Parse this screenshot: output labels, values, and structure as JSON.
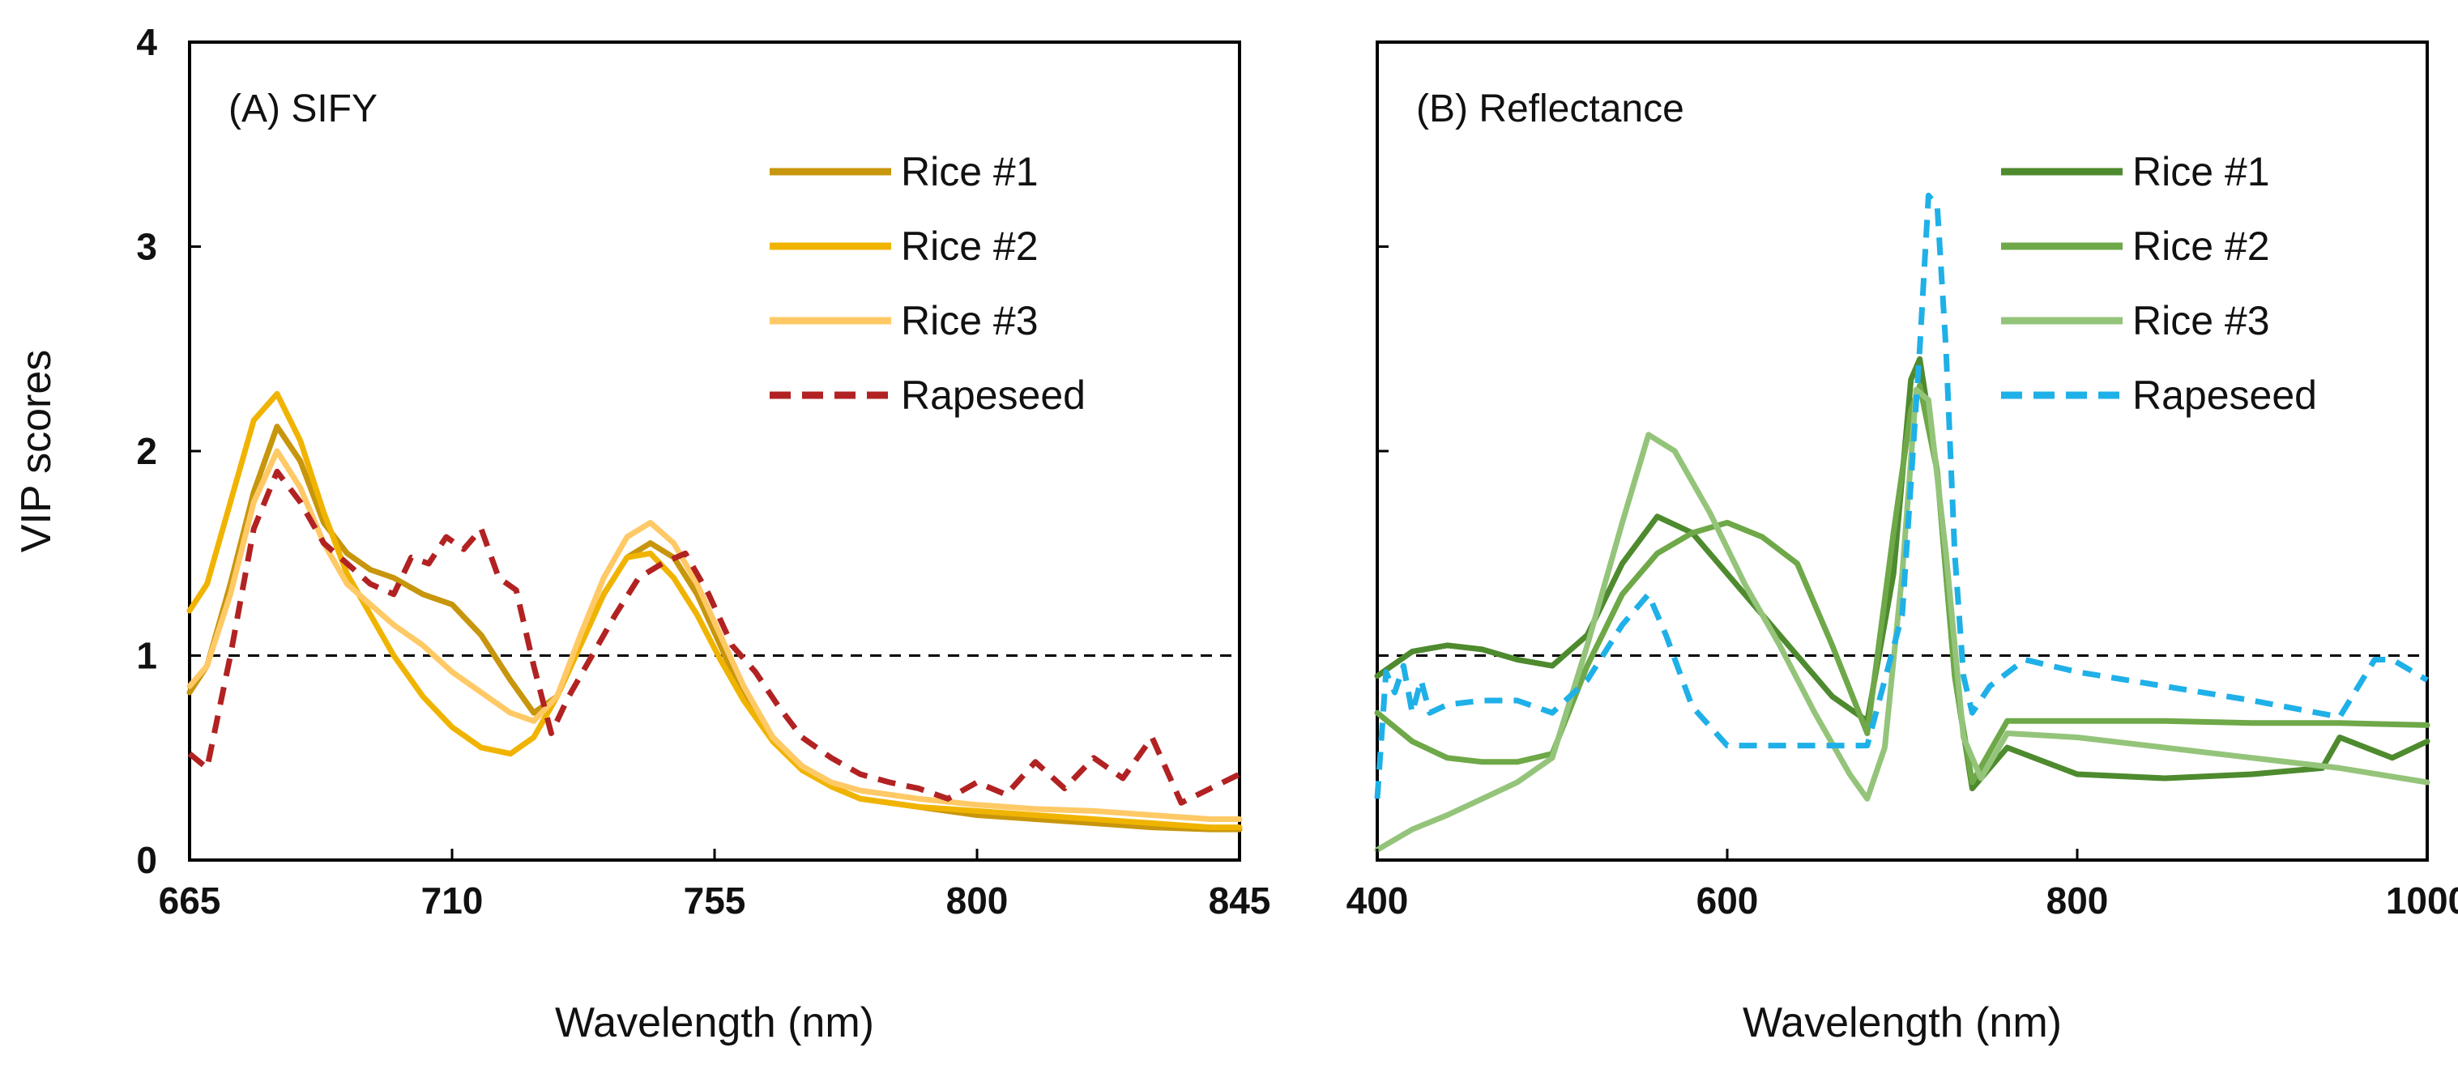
{
  "chart_data": [
    {
      "type": "line",
      "title": "(A) SIFY",
      "xlabel": "Wavelength (nm)",
      "ylabel": "VIP scores",
      "xlim": [
        665,
        845
      ],
      "ylim": [
        0,
        4
      ],
      "xticks": [
        665,
        710,
        755,
        800,
        845
      ],
      "yticks": [
        0,
        1,
        2,
        3,
        4
      ],
      "xtick_labels": [
        "665",
        "710",
        "755",
        "800",
        "845"
      ],
      "ytick_labels": [
        "0",
        "1",
        "2",
        "3",
        "4"
      ],
      "threshold": 1,
      "legend_position": "top-right",
      "series": [
        {
          "name": "Rice #1",
          "color": "#c8960c",
          "dash": "solid",
          "x": [
            665,
            668,
            672,
            676,
            680,
            684,
            688,
            692,
            696,
            700,
            705,
            710,
            715,
            720,
            724,
            728,
            732,
            736,
            740,
            744,
            748,
            752,
            756,
            760,
            765,
            770,
            775,
            780,
            790,
            800,
            810,
            820,
            830,
            840,
            845
          ],
          "y": [
            0.82,
            0.95,
            1.35,
            1.8,
            2.12,
            1.95,
            1.65,
            1.5,
            1.42,
            1.38,
            1.3,
            1.25,
            1.1,
            0.88,
            0.72,
            0.8,
            1.05,
            1.3,
            1.48,
            1.55,
            1.48,
            1.3,
            1.05,
            0.8,
            0.6,
            0.45,
            0.36,
            0.3,
            0.26,
            0.22,
            0.2,
            0.18,
            0.16,
            0.15,
            0.15
          ]
        },
        {
          "name": "Rice #2",
          "color": "#f0b400",
          "dash": "solid",
          "x": [
            665,
            668,
            672,
            676,
            680,
            684,
            688,
            692,
            696,
            700,
            705,
            710,
            715,
            720,
            724,
            728,
            732,
            736,
            740,
            744,
            748,
            752,
            756,
            760,
            765,
            770,
            775,
            780,
            790,
            800,
            810,
            820,
            830,
            840,
            845
          ],
          "y": [
            1.22,
            1.35,
            1.75,
            2.15,
            2.28,
            2.05,
            1.7,
            1.4,
            1.2,
            1.0,
            0.8,
            0.65,
            0.55,
            0.52,
            0.6,
            0.8,
            1.05,
            1.3,
            1.48,
            1.5,
            1.38,
            1.2,
            0.98,
            0.78,
            0.58,
            0.44,
            0.36,
            0.3,
            0.26,
            0.24,
            0.22,
            0.2,
            0.18,
            0.16,
            0.16
          ]
        },
        {
          "name": "Rice #3",
          "color": "#ffc966",
          "dash": "solid",
          "x": [
            665,
            668,
            672,
            676,
            680,
            684,
            688,
            692,
            696,
            700,
            705,
            710,
            715,
            720,
            724,
            728,
            732,
            736,
            740,
            744,
            748,
            752,
            756,
            760,
            765,
            770,
            775,
            780,
            790,
            800,
            810,
            820,
            830,
            840,
            845
          ],
          "y": [
            0.85,
            0.95,
            1.3,
            1.75,
            2.0,
            1.82,
            1.55,
            1.35,
            1.25,
            1.15,
            1.05,
            0.92,
            0.82,
            0.72,
            0.68,
            0.8,
            1.1,
            1.38,
            1.58,
            1.65,
            1.55,
            1.35,
            1.1,
            0.85,
            0.6,
            0.46,
            0.38,
            0.34,
            0.3,
            0.27,
            0.25,
            0.24,
            0.22,
            0.2,
            0.2
          ]
        },
        {
          "name": "Rapeseed",
          "color": "#b22222",
          "dash": "dashed",
          "x": [
            665,
            668,
            672,
            676,
            680,
            684,
            688,
            692,
            696,
            700,
            703,
            706,
            709,
            712,
            715,
            718,
            721,
            724,
            727,
            730,
            734,
            738,
            742,
            746,
            750,
            754,
            758,
            762,
            766,
            770,
            775,
            780,
            785,
            790,
            795,
            800,
            805,
            810,
            815,
            820,
            825,
            830,
            835,
            840,
            845
          ],
          "y": [
            0.52,
            0.45,
            1.0,
            1.62,
            1.9,
            1.75,
            1.55,
            1.45,
            1.35,
            1.3,
            1.48,
            1.45,
            1.58,
            1.52,
            1.62,
            1.38,
            1.32,
            0.95,
            0.62,
            0.8,
            1.0,
            1.2,
            1.38,
            1.45,
            1.5,
            1.3,
            1.05,
            0.92,
            0.75,
            0.6,
            0.5,
            0.42,
            0.38,
            0.35,
            0.3,
            0.38,
            0.32,
            0.48,
            0.35,
            0.5,
            0.4,
            0.6,
            0.28,
            0.35,
            0.42
          ]
        }
      ]
    },
    {
      "type": "line",
      "title": "(B) Reflectance",
      "xlabel": "Wavelength (nm)",
      "ylabel": "",
      "xlim": [
        400,
        1000
      ],
      "ylim": [
        0,
        4
      ],
      "xticks": [
        400,
        600,
        800,
        1000
      ],
      "yticks": [
        0,
        1,
        2,
        3,
        4
      ],
      "xtick_labels": [
        "400",
        "600",
        "800",
        "1000"
      ],
      "threshold": 1,
      "legend_position": "top-right",
      "series": [
        {
          "name": "Rice #1",
          "color": "#4e8a2e",
          "dash": "solid",
          "x": [
            400,
            420,
            440,
            460,
            480,
            500,
            520,
            540,
            560,
            580,
            600,
            620,
            640,
            660,
            680,
            695,
            705,
            710,
            720,
            730,
            740,
            760,
            800,
            850,
            900,
            940,
            950,
            980,
            1000
          ],
          "y": [
            0.9,
            1.02,
            1.05,
            1.03,
            0.98,
            0.95,
            1.1,
            1.45,
            1.68,
            1.6,
            1.4,
            1.2,
            1.0,
            0.8,
            0.68,
            1.4,
            2.35,
            2.45,
            1.9,
            0.9,
            0.35,
            0.55,
            0.42,
            0.4,
            0.42,
            0.45,
            0.6,
            0.5,
            0.58
          ]
        },
        {
          "name": "Rice #2",
          "color": "#6ea848",
          "dash": "solid",
          "x": [
            400,
            420,
            440,
            460,
            480,
            500,
            520,
            540,
            560,
            580,
            600,
            620,
            640,
            660,
            680,
            695,
            705,
            710,
            720,
            730,
            740,
            760,
            800,
            850,
            900,
            950,
            1000
          ],
          "y": [
            0.72,
            0.58,
            0.5,
            0.48,
            0.48,
            0.52,
            0.95,
            1.3,
            1.5,
            1.6,
            1.65,
            1.58,
            1.45,
            1.05,
            0.62,
            1.6,
            2.2,
            2.32,
            1.9,
            0.9,
            0.38,
            0.68,
            0.68,
            0.68,
            0.67,
            0.67,
            0.66
          ]
        },
        {
          "name": "Rice #3",
          "color": "#94c47a",
          "dash": "solid",
          "x": [
            400,
            420,
            440,
            460,
            480,
            500,
            520,
            540,
            555,
            570,
            590,
            610,
            630,
            650,
            670,
            680,
            690,
            700,
            708,
            715,
            725,
            735,
            745,
            760,
            800,
            850,
            900,
            950,
            1000
          ],
          "y": [
            0.05,
            0.15,
            0.22,
            0.3,
            0.38,
            0.5,
            1.05,
            1.65,
            2.08,
            2.0,
            1.7,
            1.35,
            1.05,
            0.72,
            0.42,
            0.3,
            0.55,
            1.4,
            2.3,
            2.25,
            1.5,
            0.6,
            0.4,
            0.62,
            0.6,
            0.55,
            0.5,
            0.45,
            0.38
          ]
        },
        {
          "name": "Rapeseed",
          "color": "#1fb0e8",
          "dash": "dashed",
          "x": [
            400,
            405,
            410,
            415,
            420,
            425,
            430,
            440,
            460,
            480,
            500,
            520,
            540,
            555,
            565,
            580,
            600,
            640,
            680,
            700,
            710,
            715,
            720,
            725,
            730,
            735,
            740,
            750,
            770,
            800,
            850,
            900,
            950,
            970,
            980,
            1000
          ],
          "y": [
            0.3,
            0.92,
            0.82,
            0.95,
            0.72,
            0.88,
            0.72,
            0.76,
            0.78,
            0.78,
            0.72,
            0.88,
            1.15,
            1.3,
            1.1,
            0.75,
            0.56,
            0.56,
            0.56,
            1.2,
            2.5,
            3.25,
            3.2,
            2.5,
            1.5,
            0.9,
            0.72,
            0.85,
            0.98,
            0.92,
            0.85,
            0.78,
            0.7,
            0.98,
            0.98,
            0.88
          ]
        }
      ]
    }
  ]
}
